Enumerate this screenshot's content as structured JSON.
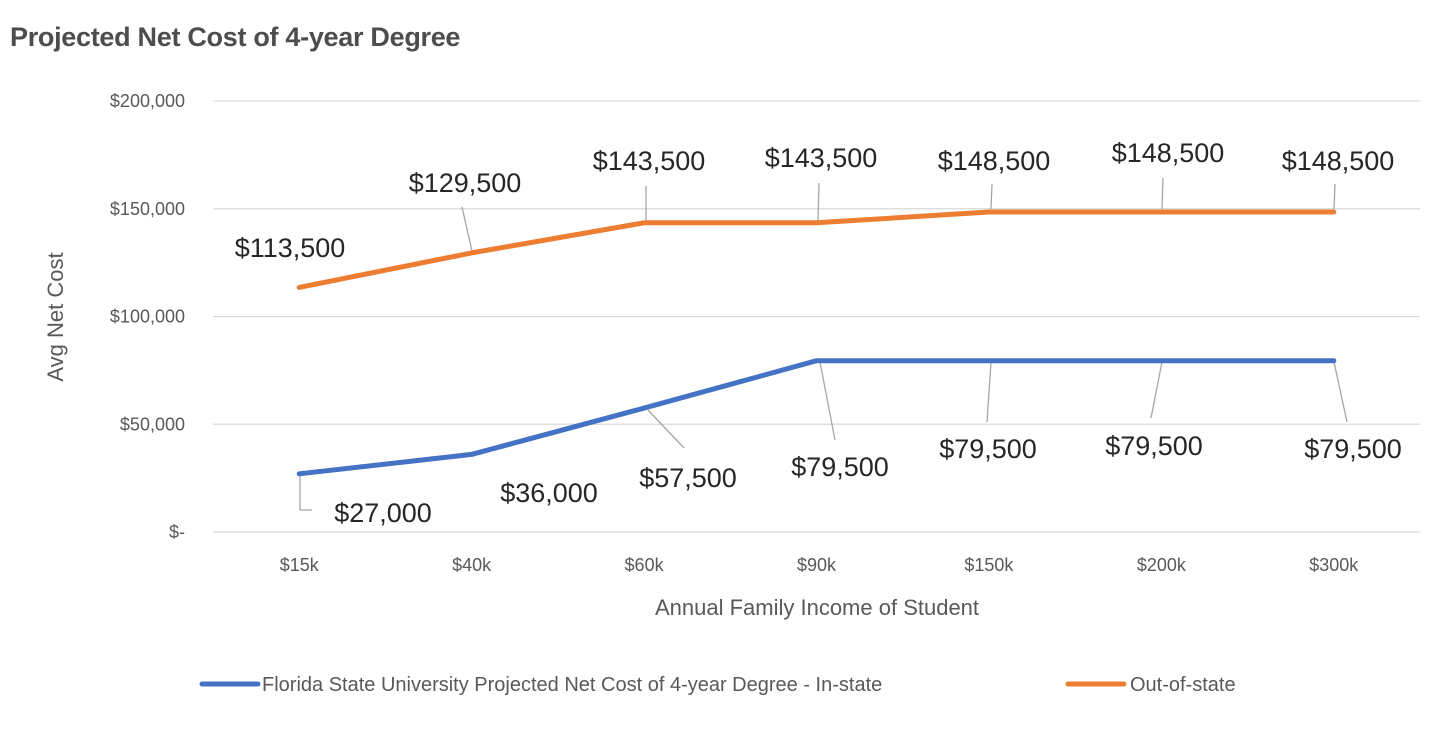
{
  "chart_data": {
    "type": "line",
    "title": "Projected Net Cost of 4-year Degree",
    "xlabel": "Annual Family Income of Student",
    "ylabel": "Avg Net Cost",
    "categories": [
      "$15k",
      "$40k",
      "$60k",
      "$90k",
      "$150k",
      "$200k",
      "$300k"
    ],
    "ylim": [
      0,
      200000
    ],
    "yticks": [
      0,
      50000,
      100000,
      150000,
      200000
    ],
    "ytick_labels": [
      "$-",
      "$50,000",
      "$100,000",
      "$150,000",
      "$200,000"
    ],
    "grid": true,
    "legend_position": "bottom",
    "series": [
      {
        "name": "Florida State University Projected Net Cost of 4-year Degree - In-state",
        "color": "#4472c4",
        "values": [
          27000,
          36000,
          57500,
          79500,
          79500,
          79500,
          79500
        ],
        "labels": [
          "$27,000",
          "$36,000",
          "$57,500",
          "$79,500",
          "$79,500",
          "$79,500",
          "$79,500"
        ]
      },
      {
        "name": "Out-of-state",
        "color": "#ed7d31",
        "values": [
          113500,
          129500,
          143500,
          143500,
          148500,
          148500,
          148500
        ],
        "labels": [
          "$113,500",
          "$129,500",
          "$143,500",
          "$143,500",
          "$148,500",
          "$148,500",
          "$148,500"
        ]
      }
    ]
  }
}
